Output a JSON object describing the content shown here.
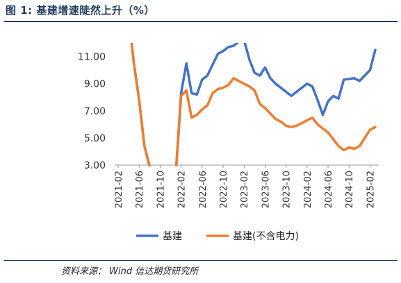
{
  "title": "图 1:  基建增速陡然上升（%）",
  "source": "资料来源：   Wind  信达期货研究所",
  "chart_data": {
    "type": "line",
    "ylim": [
      3,
      12
    ],
    "yticks": [
      3,
      5,
      7,
      9,
      11
    ],
    "ytick_labels": [
      "3.00",
      "5.00",
      "7.00",
      "9.00",
      "11.00"
    ],
    "x_start": "2021-02",
    "x_end": "2025-03",
    "xtick_labels": [
      "2021-02",
      "2021-06",
      "2021-10",
      "2022-02",
      "2022-06",
      "2022-10",
      "2023-02",
      "2023-06",
      "2023-10",
      "2024-02",
      "2024-06",
      "2024-10",
      "2025-02"
    ],
    "legend_position": "bottom",
    "series": [
      {
        "name": "基建",
        "color": "#4472C4",
        "points": [
          [
            "2021-04",
            14.0
          ],
          [
            "2021-05",
            10.5
          ],
          [
            "2021-06",
            7.8
          ],
          [
            "2021-07",
            4.4
          ],
          [
            "2021-08",
            2.9
          ],
          [
            "2021-11",
            0.5
          ],
          [
            "2022-01",
            2.5
          ],
          [
            "2022-02",
            8.3
          ],
          [
            "2022-03",
            10.5
          ],
          [
            "2022-04",
            8.3
          ],
          [
            "2022-05",
            8.2
          ],
          [
            "2022-06",
            9.3
          ],
          [
            "2022-07",
            9.6
          ],
          [
            "2022-08",
            10.4
          ],
          [
            "2022-09",
            11.2
          ],
          [
            "2022-10",
            11.4
          ],
          [
            "2022-11",
            11.7
          ],
          [
            "2022-12",
            11.8
          ],
          [
            "2023-01",
            12.1
          ],
          [
            "2023-02",
            12.2
          ],
          [
            "2023-03",
            10.8
          ],
          [
            "2023-04",
            9.8
          ],
          [
            "2023-05",
            9.6
          ],
          [
            "2023-06",
            10.2
          ],
          [
            "2023-07",
            9.4
          ],
          [
            "2023-08",
            9.0
          ],
          [
            "2023-09",
            8.7
          ],
          [
            "2023-10",
            8.4
          ],
          [
            "2023-11",
            8.1
          ],
          [
            "2023-12",
            8.4
          ],
          [
            "2024-01",
            8.7
          ],
          [
            "2024-02",
            9.0
          ],
          [
            "2024-03",
            8.8
          ],
          [
            "2024-04",
            7.8
          ],
          [
            "2024-05",
            6.7
          ],
          [
            "2024-06",
            7.7
          ],
          [
            "2024-07",
            8.1
          ],
          [
            "2024-08",
            7.9
          ],
          [
            "2024-09",
            9.3
          ],
          [
            "2024-10",
            9.35
          ],
          [
            "2024-11",
            9.4
          ],
          [
            "2024-12",
            9.2
          ],
          [
            "2025-01",
            9.6
          ],
          [
            "2025-02",
            10.0
          ],
          [
            "2025-03",
            11.5
          ]
        ]
      },
      {
        "name": "基建(不含电力)",
        "color": "#ED7D31",
        "points": [
          [
            "2021-04",
            14.0
          ],
          [
            "2021-05",
            10.5
          ],
          [
            "2021-06",
            7.8
          ],
          [
            "2021-07",
            4.4
          ],
          [
            "2021-08",
            2.9
          ],
          [
            "2021-11",
            0.5
          ],
          [
            "2022-01",
            2.5
          ],
          [
            "2022-02",
            8.1
          ],
          [
            "2022-03",
            8.5
          ],
          [
            "2022-04",
            6.5
          ],
          [
            "2022-05",
            6.7
          ],
          [
            "2022-06",
            7.1
          ],
          [
            "2022-07",
            7.4
          ],
          [
            "2022-08",
            8.3
          ],
          [
            "2022-09",
            8.6
          ],
          [
            "2022-10",
            8.7
          ],
          [
            "2022-11",
            8.9
          ],
          [
            "2022-12",
            9.4
          ],
          [
            "2023-01",
            9.2
          ],
          [
            "2023-02",
            9.0
          ],
          [
            "2023-03",
            8.8
          ],
          [
            "2023-04",
            8.5
          ],
          [
            "2023-05",
            7.5
          ],
          [
            "2023-06",
            7.2
          ],
          [
            "2023-07",
            6.8
          ],
          [
            "2023-08",
            6.4
          ],
          [
            "2023-09",
            6.2
          ],
          [
            "2023-10",
            5.9
          ],
          [
            "2023-11",
            5.8
          ],
          [
            "2023-12",
            5.9
          ],
          [
            "2024-01",
            6.1
          ],
          [
            "2024-02",
            6.3
          ],
          [
            "2024-03",
            6.5
          ],
          [
            "2024-04",
            6.0
          ],
          [
            "2024-05",
            5.7
          ],
          [
            "2024-06",
            5.4
          ],
          [
            "2024-07",
            4.9
          ],
          [
            "2024-08",
            4.4
          ],
          [
            "2024-09",
            4.1
          ],
          [
            "2024-10",
            4.3
          ],
          [
            "2024-11",
            4.2
          ],
          [
            "2024-12",
            4.4
          ],
          [
            "2025-01",
            5.0
          ],
          [
            "2025-02",
            5.6
          ],
          [
            "2025-03",
            5.8
          ]
        ]
      }
    ]
  }
}
